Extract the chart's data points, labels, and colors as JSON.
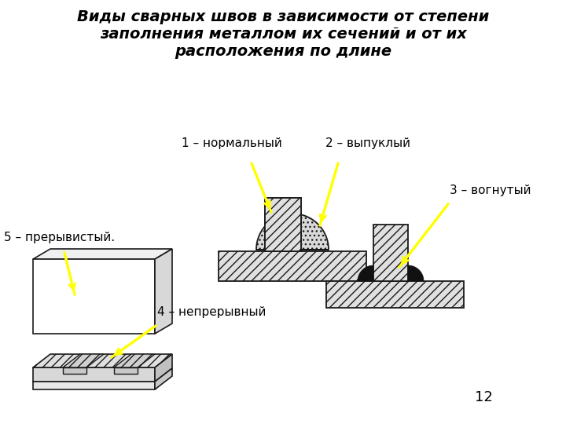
{
  "title": "Виды сварных швов в зависимости от степени\nзаполнения металлом их сечений и от их\nрасположения по длине",
  "title_fontsize": 14,
  "bg_color": "#ffffff",
  "page_number": "12",
  "lc": "#1a1a1a",
  "fc_hatch": "#e8e8e8",
  "fc_dark": "#c8c8c8",
  "fc_black": "#111111",
  "arrow_color": "#ffff00",
  "label1": "1 – нормальный",
  "label2": "2 – выпуклый",
  "label3": "3 – вогнутый",
  "label4": "4 – непрерывный",
  "label5": "5 – прерывистый."
}
